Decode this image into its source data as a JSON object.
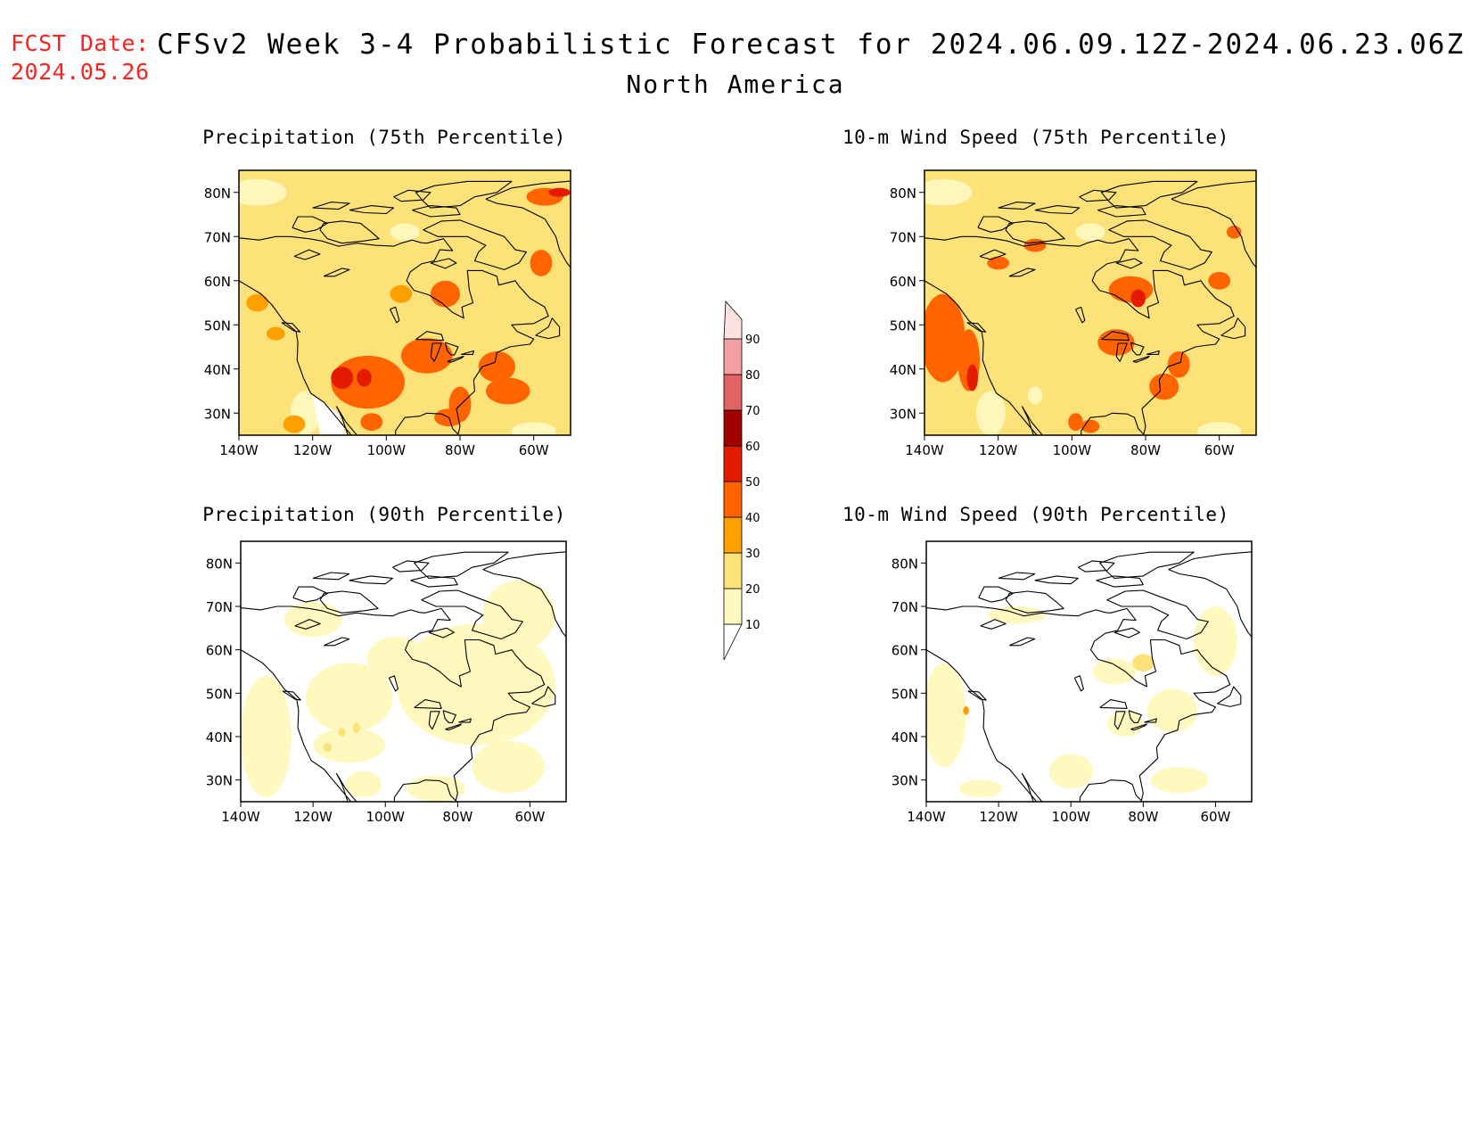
{
  "header": {
    "fcst_label": "FCST Date:",
    "fcst_date": "2024.05.26",
    "title": "CFSv2 Week 3-4 Probabilistic Forecast for 2024.06.09.12Z-2024.06.23.06Z",
    "region": "North America"
  },
  "panels": [
    {
      "id": "precip75",
      "title": "Precipitation (75th Percentile)",
      "field": "precipitation",
      "percentile": 75,
      "base_level": 20
    },
    {
      "id": "wind75",
      "title": "10-m Wind Speed (75th Percentile)",
      "field": "10-m wind speed",
      "percentile": 75,
      "base_level": 20
    },
    {
      "id": "precip90",
      "title": "Precipitation (90th Percentile)",
      "field": "precipitation",
      "percentile": 90,
      "base_level": 0
    },
    {
      "id": "wind90",
      "title": "10-m Wind Speed (90th Percentile)",
      "field": "10-m wind speed",
      "percentile": 90,
      "base_level": 0
    }
  ],
  "map": {
    "lat_ticks": [
      "30N",
      "40N",
      "50N",
      "60N",
      "70N",
      "80N"
    ],
    "lon_ticks": [
      "140W",
      "120W",
      "100W",
      "80W",
      "60W"
    ],
    "lat_range": [
      25,
      85
    ],
    "lon_range": [
      -140,
      -50
    ]
  },
  "colorbar": {
    "levels": [
      10,
      20,
      30,
      40,
      50,
      60,
      70,
      80,
      90
    ],
    "colors": [
      "#fff9c0",
      "#fde27a",
      "#ff9f00",
      "#ff6400",
      "#e51b00",
      "#a50000",
      "#e06464",
      "#f5a0a0",
      "#fde2e2"
    ],
    "colors_by_level": {
      "0": "#ffffff",
      "10": "#fff9c0",
      "20": "#fde27a",
      "30": "#ff9f00",
      "40": "#ff6400",
      "50": "#e51b00",
      "60": "#a50000"
    }
  },
  "coastline_color": "#000000"
}
